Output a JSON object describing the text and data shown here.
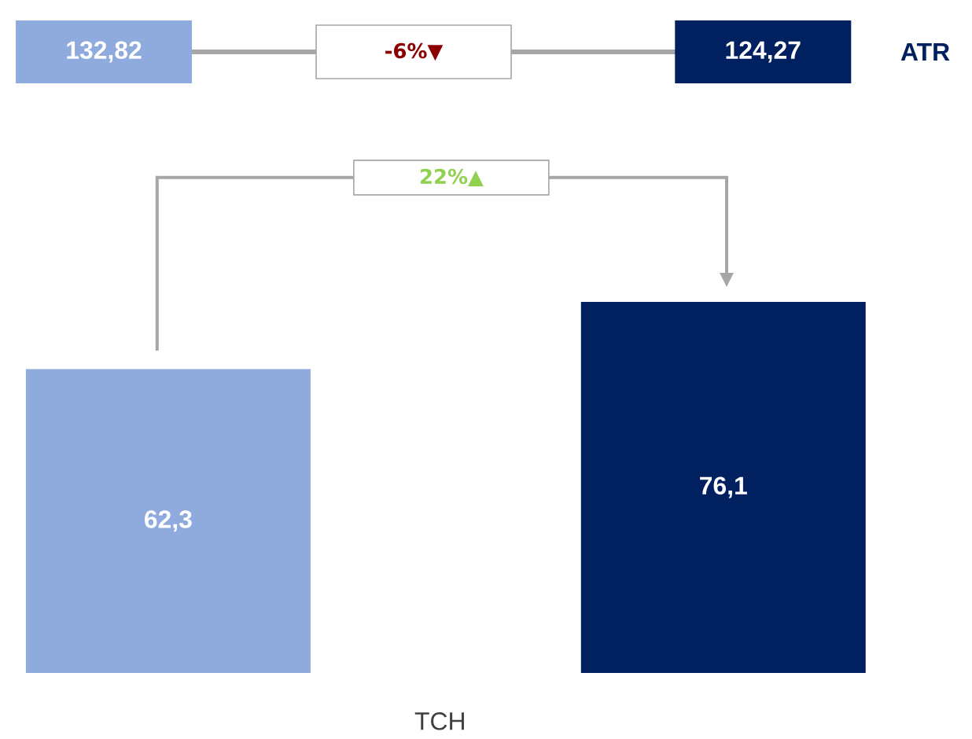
{
  "chart_data": [
    {
      "type": "other",
      "ylabel": "ATR",
      "categories": [
        null,
        null
      ],
      "value_labels": [
        "132,82",
        "124,27"
      ],
      "colors": [
        "#8faadc",
        "#002060"
      ],
      "annotations": [
        "-6%▼"
      ]
    },
    {
      "type": "bar",
      "xlabel": "TCH",
      "categories": [
        null,
        null
      ],
      "values": [
        62.3,
        76.1
      ],
      "value_labels": [
        "62,3",
        "76,1"
      ],
      "colors": [
        "#8faadc",
        "#002060"
      ],
      "annotations": [
        "22%▲"
      ]
    }
  ]
}
